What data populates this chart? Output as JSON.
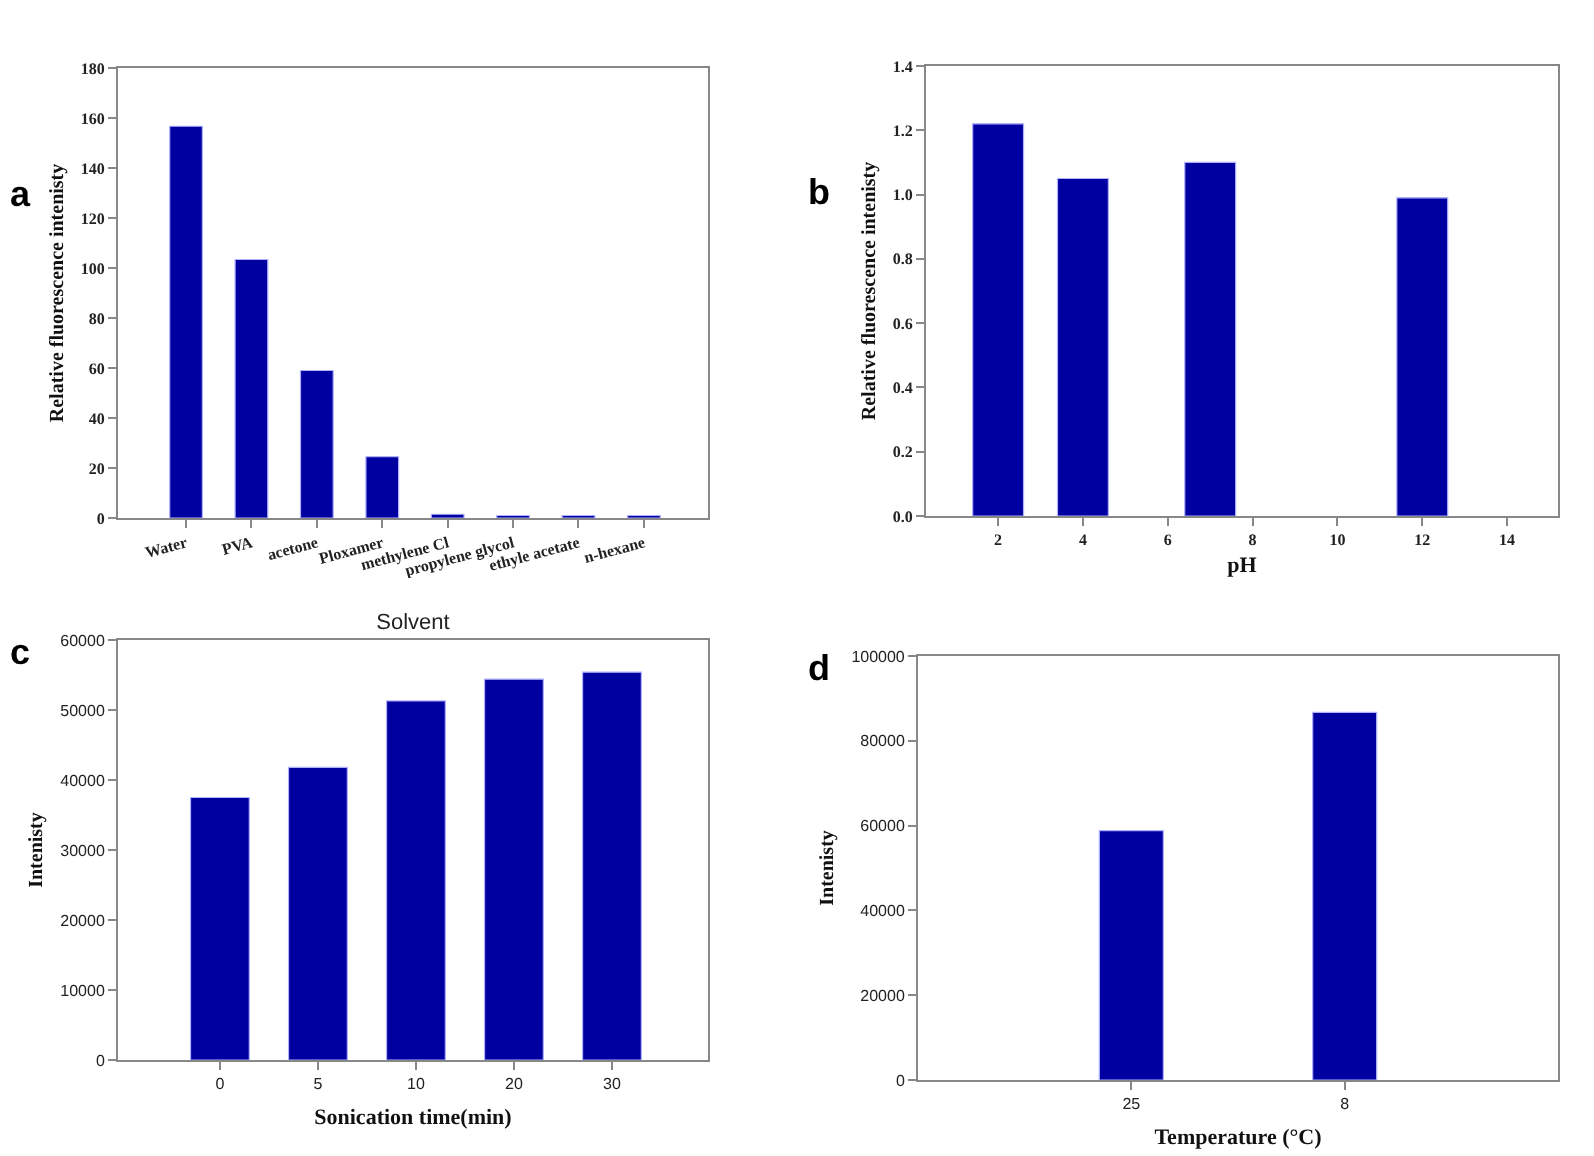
{
  "chart_data": [
    {
      "type": "bar",
      "categories": [
        "Water",
        "PVA",
        "acetone",
        "Ploxamer",
        "methylene Cl",
        "propylene glycol",
        "ethyle acetate",
        "n-hexane"
      ],
      "values": [
        156.7,
        103.4,
        59,
        24.5,
        1.5,
        1,
        1,
        1
      ],
      "color": "#0000a0",
      "ylabel": "Relative fluorescence intenisty",
      "ylim": [
        0,
        180
      ],
      "yticks": [
        0,
        20,
        40,
        60,
        80,
        100,
        120,
        140,
        160,
        180
      ],
      "annotations": [
        "a"
      ]
    },
    {
      "type": "bar",
      "x": [
        2,
        4,
        7,
        12
      ],
      "values": [
        1.22,
        1.05,
        1.1,
        0.99
      ],
      "color": "#0000a0",
      "xlabel": "pH",
      "ylabel": "Relative fluorescence intenisty",
      "xlim": [
        0.3,
        15.2
      ],
      "xticks": [
        2,
        4,
        6,
        8,
        10,
        12,
        14
      ],
      "ylim": [
        0,
        1.4
      ],
      "yticks": [
        {
          "value": 0,
          "label": "0.0"
        },
        0.2,
        0.4,
        0.6,
        0.8,
        {
          "value": 1,
          "label": "1.0"
        },
        1.2,
        1.4
      ],
      "annotations": [
        "b"
      ]
    },
    {
      "type": "bar",
      "title": "Solvent",
      "categories": [
        "0",
        "5",
        "10",
        "20",
        "30"
      ],
      "values": [
        37500,
        41800,
        51300,
        54400,
        55400
      ],
      "color": "#0000a0",
      "xlabel": "Sonication time(min)",
      "ylabel": "Intenisty",
      "ylim": [
        0,
        60000
      ],
      "yticks": [
        0,
        10000,
        20000,
        30000,
        40000,
        50000,
        60000
      ],
      "annotations": [
        "c"
      ]
    },
    {
      "type": "bar",
      "categories": [
        "25",
        "8"
      ],
      "values": [
        58800,
        86700
      ],
      "color": "#0000a0",
      "xlabel": "Temperature (°C)",
      "ylabel": "Intenisty",
      "ylim": [
        0,
        100000
      ],
      "yticks": [
        0,
        20000,
        40000,
        60000,
        80000,
        100000
      ],
      "annotations": [
        "d"
      ]
    }
  ]
}
